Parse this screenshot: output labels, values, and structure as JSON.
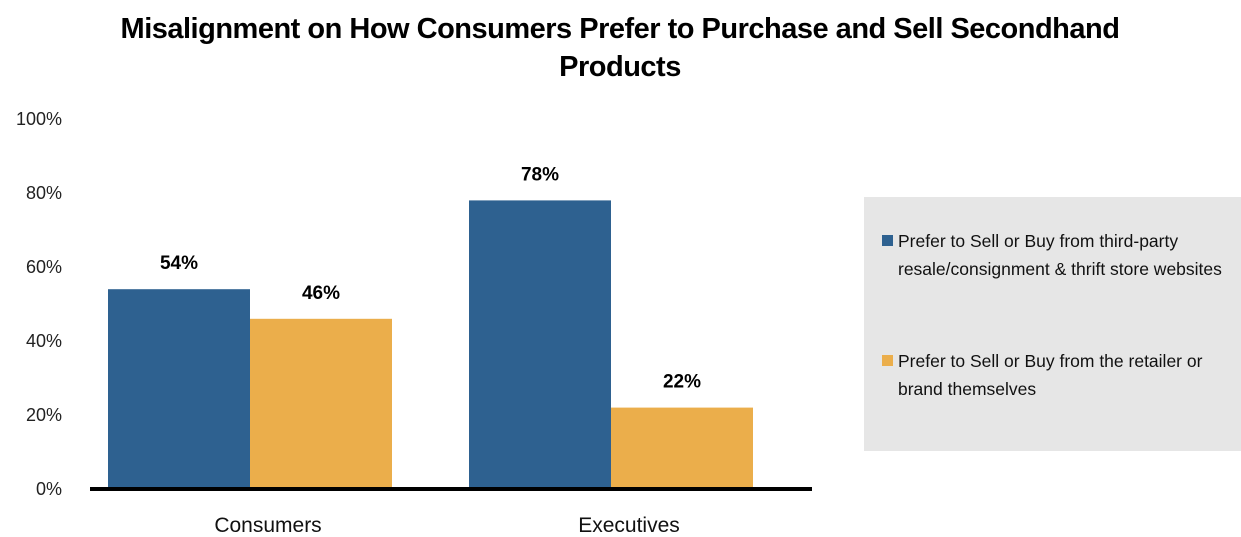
{
  "chart_data": {
    "type": "bar",
    "title": "Misalignment on How Consumers Prefer to Purchase and Sell Secondhand Products",
    "categories": [
      "Consumers",
      "Executives"
    ],
    "series": [
      {
        "name": "Prefer to Sell or Buy from third-party resale/consignment & thrift store websites",
        "values": [
          54,
          78
        ],
        "labels": [
          "54%",
          "78%"
        ],
        "color": "#2e6190"
      },
      {
        "name": "Prefer to Sell or Buy from the retailer or brand themselves",
        "values": [
          46,
          22
        ],
        "labels": [
          "46%",
          "22%"
        ],
        "color": "#ebae4b"
      }
    ],
    "ylim": [
      0,
      100
    ],
    "yticks": [
      0,
      20,
      40,
      60,
      80,
      100
    ],
    "ytick_labels": [
      "0%",
      "20%",
      "40%",
      "60%",
      "80%",
      "100%"
    ],
    "xlabel": "",
    "ylabel": "",
    "grid": false,
    "legend_position": "right"
  }
}
